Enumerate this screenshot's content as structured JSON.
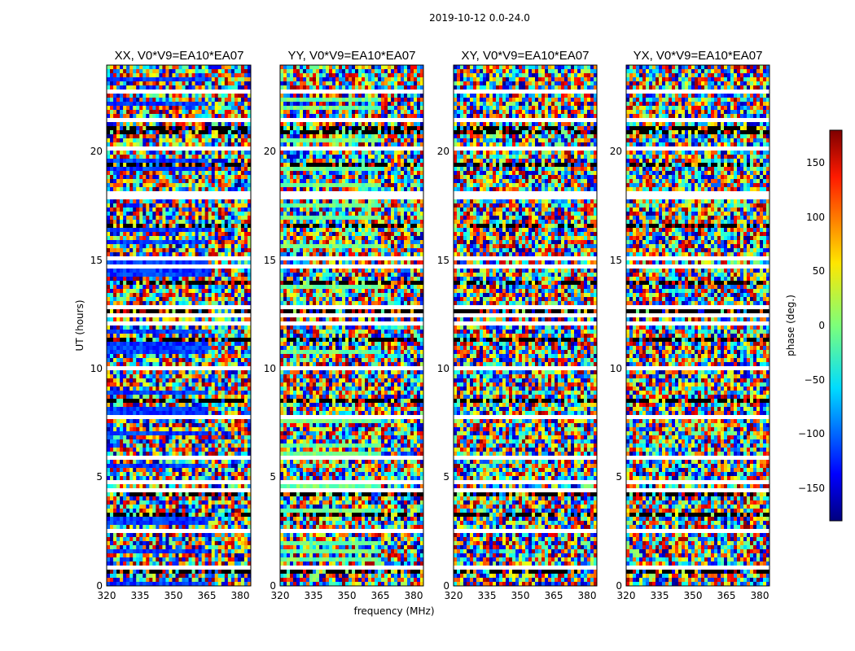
{
  "chart_data": {
    "type": "heatmap",
    "title": "2019-10-12 0.0-24.0",
    "xlabel": "frequency (MHz)",
    "ylabel": "UT (hours)",
    "xlim": [
      320,
      385
    ],
    "ylim": [
      0,
      24
    ],
    "xticks": [
      "320",
      "335",
      "350",
      "365",
      "380"
    ],
    "yticks": [
      "0",
      "5",
      "10",
      "15",
      "20"
    ],
    "panels": [
      {
        "title": "XX, V0*V9=EA10*EA07",
        "bias": "blue"
      },
      {
        "title": "YY, V0*V9=EA10*EA07",
        "bias": "cyan"
      },
      {
        "title": "XY, V0*V9=EA10*EA07",
        "bias": "none"
      },
      {
        "title": "YX, V0*V9=EA10*EA07",
        "bias": "none"
      }
    ],
    "colorbar": {
      "label": "phase (deg.)",
      "range": [
        -180,
        180
      ],
      "ticks": [
        "150",
        "100",
        "50",
        "0",
        "−50",
        "−100",
        "−150"
      ],
      "colormap": "jet"
    }
  }
}
